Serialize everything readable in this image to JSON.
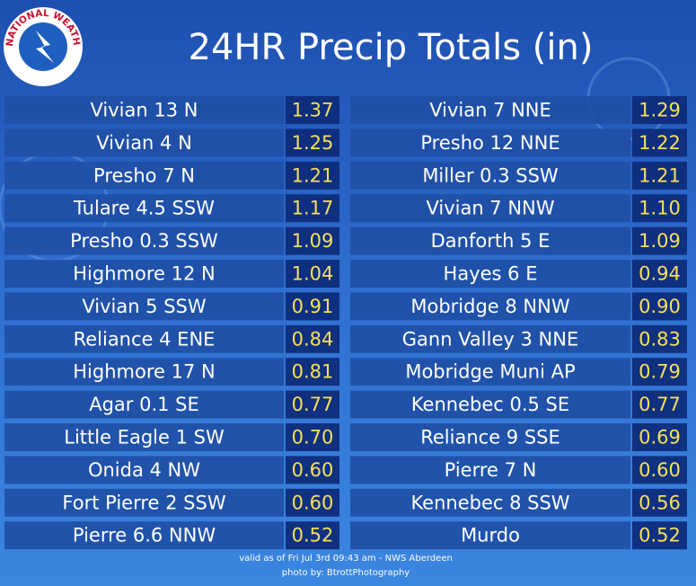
{
  "header": {
    "title": "24HR Precip Totals (in)",
    "logo_text": "NATIONAL WEATHER SERVICE"
  },
  "table": {
    "rows": [
      [
        "Vivian 13 N",
        "1.37",
        "Vivian 7 NNE",
        "1.29"
      ],
      [
        "Vivian 4 N",
        "1.25",
        "Presho 12 NNE",
        "1.22"
      ],
      [
        "Presho 7 N",
        "1.21",
        "Miller 0.3 SSW",
        "1.21"
      ],
      [
        "Tulare 4.5 SSW",
        "1.17",
        "Vivian 7 NNW",
        "1.10"
      ],
      [
        "Presho 0.3 SSW",
        "1.09",
        "Danforth 5 E",
        "1.09"
      ],
      [
        "Highmore 12 N",
        "1.04",
        "Hayes 6 E",
        "0.94"
      ],
      [
        "Vivian 5 SSW",
        "0.91",
        "Mobridge 8 NNW",
        "0.90"
      ],
      [
        "Reliance 4 ENE",
        "0.84",
        "Gann Valley 3 NNE",
        "0.83"
      ],
      [
        "Highmore 17 N",
        "0.81",
        "Mobridge Muni AP",
        "0.79"
      ],
      [
        "Agar 0.1 SE",
        "0.77",
        "Kennebec 0.5 SE",
        "0.77"
      ],
      [
        "Little Eagle 1 SW",
        "0.70",
        "Reliance 9 SSE",
        "0.69"
      ],
      [
        "Onida 4 NW",
        "0.60",
        "Pierre 7 N",
        "0.60"
      ],
      [
        "Fort Pierre 2 SSW",
        "0.60",
        "Kennebec 8 SSW",
        "0.56"
      ],
      [
        "Pierre 6.6 NNW",
        "0.52",
        "Murdo",
        "0.52"
      ]
    ]
  },
  "footer": {
    "valid": "valid as of Fri Jul 3rd 09:43 am - NWS Aberdeen",
    "credit": "photo by: BtrottPhotography"
  }
}
